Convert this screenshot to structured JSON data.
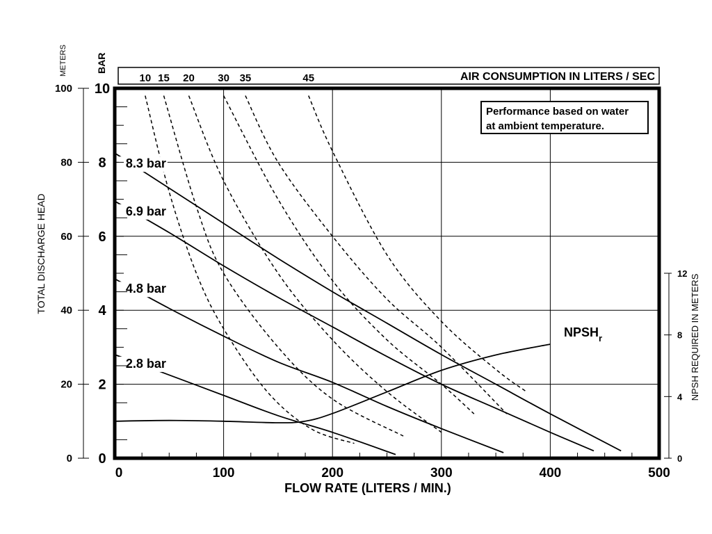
{
  "chart_data": {
    "type": "line",
    "xlabel": "FLOW RATE (LITERS / MIN.)",
    "ylabel_left": "TOTAL DISCHARGE HEAD",
    "ylabel_left_units": [
      "METERS",
      "BAR"
    ],
    "ylabel_right": "NPSH REQUIRED IN METERS",
    "top_axis_label": "AIR CONSUMPTION IN LITERS / SEC",
    "note": [
      "Performance based on water",
      "at ambient temperature."
    ],
    "xlim": [
      0,
      500
    ],
    "ylim_meters": [
      0,
      100
    ],
    "ylim_bar": [
      0,
      10
    ],
    "x_ticks": [
      "0",
      "100",
      "200",
      "300",
      "400",
      "500"
    ],
    "y_ticks_meters": [
      "0",
      "20",
      "40",
      "60",
      "80",
      "100"
    ],
    "y_ticks_bar": [
      "0",
      "2",
      "4",
      "6",
      "8",
      "10"
    ],
    "y_ticks_npsh": [
      "0",
      "4",
      "8",
      "12"
    ],
    "npsh_scale_max": 24,
    "grid": true,
    "pressure_curves": [
      {
        "name": "8.3 bar",
        "points": [
          [
            0,
            82.5
          ],
          [
            50,
            73
          ],
          [
            100,
            63.5
          ],
          [
            150,
            54
          ],
          [
            200,
            45
          ],
          [
            250,
            36.5
          ],
          [
            300,
            28
          ],
          [
            350,
            20
          ],
          [
            400,
            12
          ],
          [
            465,
            2
          ]
        ]
      },
      {
        "name": "6.9 bar",
        "points": [
          [
            0,
            69.5
          ],
          [
            50,
            61
          ],
          [
            100,
            52
          ],
          [
            150,
            43.5
          ],
          [
            200,
            35.5
          ],
          [
            250,
            27.5
          ],
          [
            300,
            20
          ],
          [
            350,
            13.5
          ],
          [
            400,
            7
          ],
          [
            440,
            2
          ]
        ]
      },
      {
        "name": "4.8 bar",
        "points": [
          [
            0,
            48.5
          ],
          [
            50,
            40.5
          ],
          [
            100,
            33
          ],
          [
            150,
            26
          ],
          [
            200,
            20.5
          ],
          [
            250,
            14
          ],
          [
            300,
            8
          ],
          [
            357,
            1.5
          ]
        ]
      },
      {
        "name": "2.8 bar",
        "points": [
          [
            0,
            28
          ],
          [
            50,
            22.5
          ],
          [
            100,
            17
          ],
          [
            150,
            11.5
          ],
          [
            200,
            7
          ],
          [
            258,
            1
          ]
        ]
      }
    ],
    "air_consumption_curves": [
      {
        "name": "10",
        "points": [
          [
            28,
            98
          ],
          [
            50,
            72
          ],
          [
            75,
            50
          ],
          [
            100,
            35
          ],
          [
            140,
            18
          ],
          [
            180,
            8
          ],
          [
            220,
            4
          ]
        ]
      },
      {
        "name": "15",
        "points": [
          [
            45,
            98
          ],
          [
            75,
            68
          ],
          [
            100,
            50
          ],
          [
            150,
            30
          ],
          [
            200,
            16
          ],
          [
            265,
            6
          ]
        ]
      },
      {
        "name": "20",
        "points": [
          [
            68,
            98
          ],
          [
            100,
            75
          ],
          [
            150,
            50
          ],
          [
            200,
            32
          ],
          [
            250,
            18
          ],
          [
            300,
            7
          ]
        ]
      },
      {
        "name": "30",
        "points": [
          [
            100,
            98
          ],
          [
            150,
            70
          ],
          [
            200,
            48
          ],
          [
            250,
            32
          ],
          [
            300,
            20
          ],
          [
            330,
            12
          ]
        ]
      },
      {
        "name": "35",
        "points": [
          [
            120,
            98
          ],
          [
            150,
            80
          ],
          [
            200,
            60
          ],
          [
            250,
            43
          ],
          [
            300,
            30
          ],
          [
            360,
            12
          ]
        ]
      },
      {
        "name": "45",
        "points": [
          [
            178,
            98
          ],
          [
            200,
            83
          ],
          [
            250,
            55
          ],
          [
            300,
            37
          ],
          [
            350,
            24
          ],
          [
            378,
            18
          ]
        ]
      }
    ],
    "npsh_curve": {
      "name": "NPSH",
      "subscript": "r",
      "points": [
        [
          0,
          2.4
        ],
        [
          50,
          2.45
        ],
        [
          100,
          2.4
        ],
        [
          150,
          2.3
        ],
        [
          175,
          2.4
        ],
        [
          200,
          2.9
        ],
        [
          250,
          4.3
        ],
        [
          300,
          5.7
        ],
        [
          350,
          6.7
        ],
        [
          400,
          7.4
        ]
      ]
    }
  }
}
